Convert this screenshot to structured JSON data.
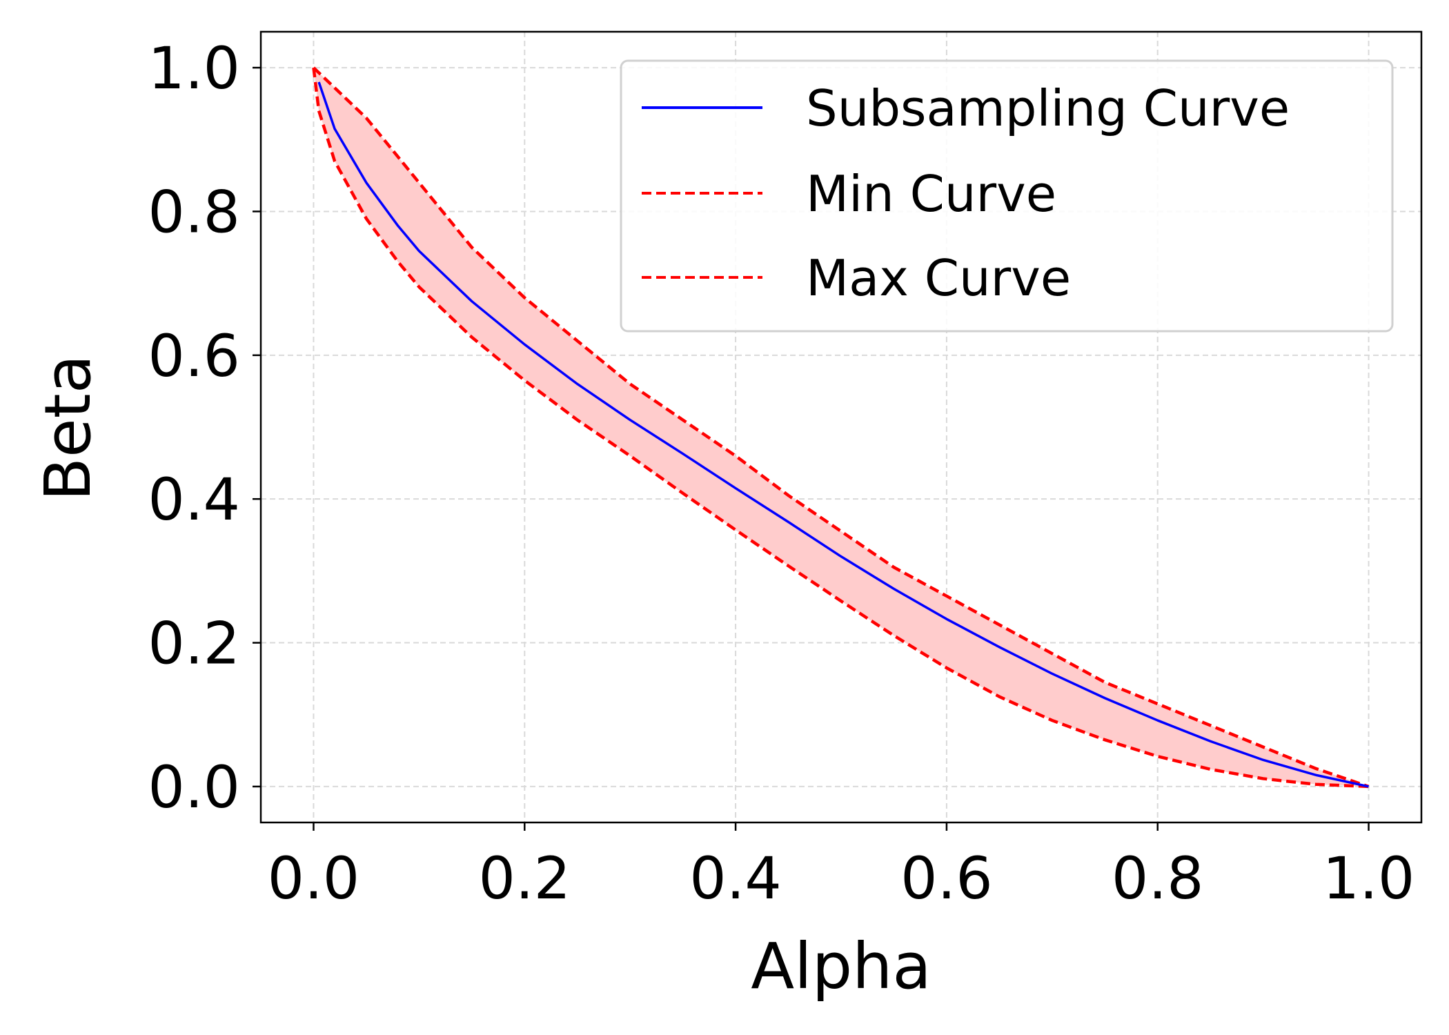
{
  "chart_data": {
    "type": "line",
    "title": "",
    "xlabel": "Alpha",
    "ylabel": "Beta",
    "xlim": [
      -0.05,
      1.05
    ],
    "ylim": [
      -0.05,
      1.05
    ],
    "xticks": [
      0.0,
      0.2,
      0.4,
      0.6,
      0.8,
      1.0
    ],
    "yticks": [
      0.0,
      0.2,
      0.4,
      0.6,
      0.8,
      1.0
    ],
    "xtick_labels": [
      "0.0",
      "0.2",
      "0.4",
      "0.6",
      "0.8",
      "1.0"
    ],
    "ytick_labels": [
      "0.0",
      "0.2",
      "0.4",
      "0.6",
      "0.8",
      "1.0"
    ],
    "grid": true,
    "legend_position": "top-right",
    "fill_between": {
      "lower": "Min Curve",
      "upper": "Max Curve",
      "color": "#ffcccc"
    },
    "series": [
      {
        "name": "Subsampling Curve",
        "color": "#0000ff",
        "style": "solid",
        "x": [
          0.005,
          0.02,
          0.05,
          0.08,
          0.1,
          0.15,
          0.2,
          0.25,
          0.3,
          0.35,
          0.4,
          0.45,
          0.5,
          0.55,
          0.6,
          0.65,
          0.7,
          0.75,
          0.8,
          0.85,
          0.9,
          0.95,
          1.0
        ],
        "y": [
          0.98,
          0.915,
          0.84,
          0.78,
          0.745,
          0.675,
          0.615,
          0.56,
          0.51,
          0.463,
          0.415,
          0.368,
          0.32,
          0.275,
          0.233,
          0.194,
          0.157,
          0.123,
          0.092,
          0.063,
          0.037,
          0.016,
          0.0
        ]
      },
      {
        "name": "Min Curve",
        "color": "#ff0000",
        "style": "dashed",
        "x": [
          0.0,
          0.005,
          0.02,
          0.05,
          0.08,
          0.1,
          0.15,
          0.2,
          0.25,
          0.3,
          0.35,
          0.4,
          0.45,
          0.5,
          0.55,
          0.6,
          0.65,
          0.7,
          0.75,
          0.8,
          0.85,
          0.9,
          0.95,
          1.0
        ],
        "y": [
          1.0,
          0.94,
          0.87,
          0.79,
          0.73,
          0.695,
          0.625,
          0.565,
          0.51,
          0.46,
          0.408,
          0.357,
          0.307,
          0.258,
          0.21,
          0.165,
          0.125,
          0.092,
          0.065,
          0.042,
          0.024,
          0.011,
          0.003,
          0.0
        ]
      },
      {
        "name": "Max Curve",
        "color": "#ff0000",
        "style": "dashed",
        "x": [
          0.0,
          0.05,
          0.1,
          0.15,
          0.2,
          0.25,
          0.3,
          0.35,
          0.4,
          0.45,
          0.5,
          0.55,
          0.6,
          0.65,
          0.7,
          0.75,
          0.8,
          0.85,
          0.9,
          0.95,
          1.0
        ],
        "y": [
          1.0,
          0.93,
          0.84,
          0.75,
          0.68,
          0.62,
          0.56,
          0.51,
          0.46,
          0.405,
          0.355,
          0.305,
          0.265,
          0.225,
          0.185,
          0.145,
          0.115,
          0.085,
          0.055,
          0.025,
          0.0
        ]
      }
    ]
  }
}
